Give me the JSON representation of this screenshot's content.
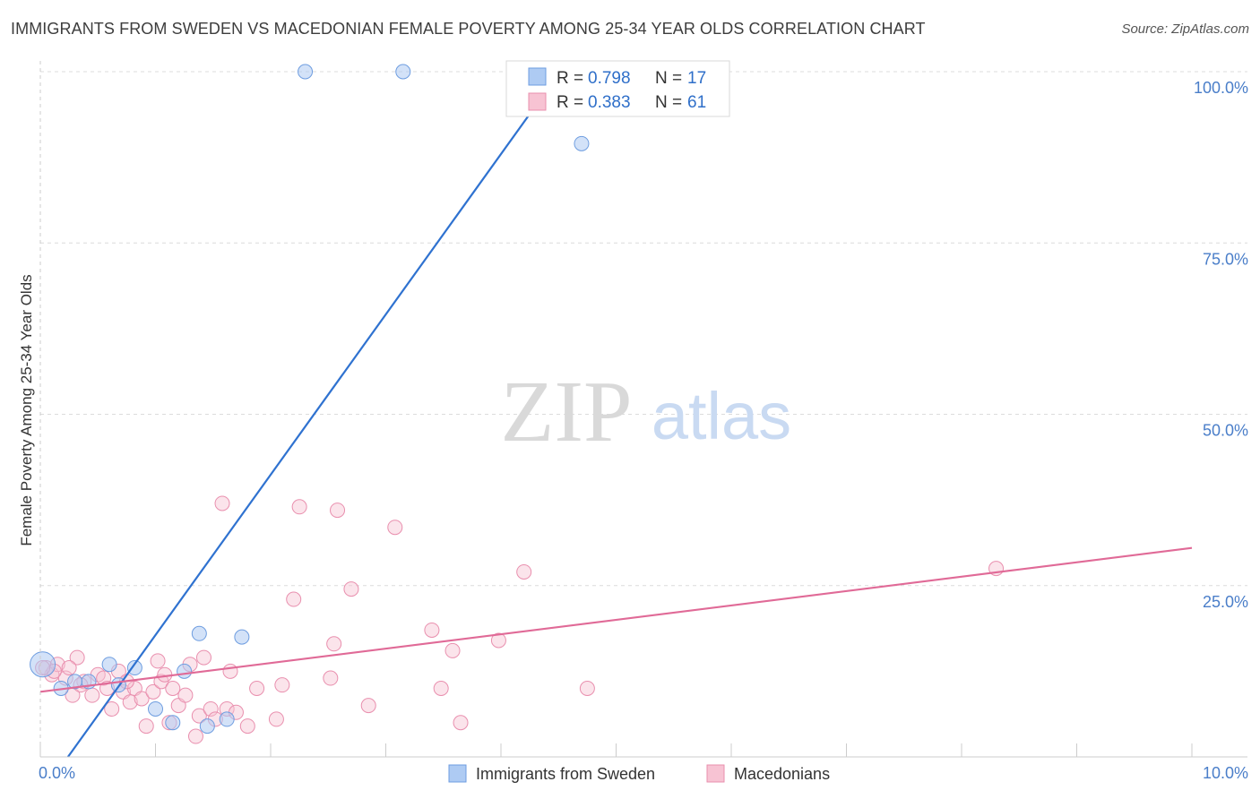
{
  "title": "IMMIGRANTS FROM SWEDEN VS MACEDONIAN FEMALE POVERTY AMONG 25-34 YEAR OLDS CORRELATION CHART",
  "source": "Source: ZipAtlas.com",
  "watermark": {
    "zip": "ZIP",
    "atlas": "atlas"
  },
  "colors": {
    "sweden_fill": "#aecbf3",
    "sweden_stroke": "#6e9de0",
    "sweden_line": "#2f72d0",
    "maced_fill": "#f7c3d3",
    "maced_stroke": "#e98fae",
    "maced_line": "#e06a97",
    "tick_text": "#4a7ec9"
  },
  "legend": {
    "r_label": "R =",
    "n_label": "N =",
    "rows": [
      {
        "r": "0.798",
        "n": "17"
      },
      {
        "r": "0.383",
        "n": "61"
      }
    ]
  },
  "chart_data": {
    "type": "scatter",
    "title": "IMMIGRANTS FROM SWEDEN VS MACEDONIAN FEMALE POVERTY AMONG 25-34 YEAR OLDS CORRELATION CHART",
    "xlabel": "",
    "ylabel": "Female Poverty Among 25-34 Year Olds",
    "xlim": [
      0,
      10
    ],
    "ylim": [
      0,
      100
    ],
    "x_tick_labels": [
      "0.0%",
      "10.0%"
    ],
    "y_tick_values": [
      25,
      50,
      75,
      100
    ],
    "y_tick_labels": [
      "25.0%",
      "50.0%",
      "75.0%",
      "100.0%"
    ],
    "grid": true,
    "legend_position": "top-center",
    "series": [
      {
        "name": "Immigrants from Sweden",
        "r": 0.798,
        "n": 17,
        "trend": {
          "x": [
            0.24,
            4.45
          ],
          "y": [
            0.0,
            98.5
          ]
        },
        "points": [
          {
            "x": 0.02,
            "y": 13.5
          },
          {
            "x": 0.18,
            "y": 10.0
          },
          {
            "x": 0.42,
            "y": 11.0
          },
          {
            "x": 0.6,
            "y": 13.5
          },
          {
            "x": 0.68,
            "y": 10.5
          },
          {
            "x": 0.82,
            "y": 13.0
          },
          {
            "x": 1.0,
            "y": 7.0
          },
          {
            "x": 1.15,
            "y": 5.0
          },
          {
            "x": 1.25,
            "y": 12.5
          },
          {
            "x": 1.38,
            "y": 18.0
          },
          {
            "x": 1.45,
            "y": 4.5
          },
          {
            "x": 1.62,
            "y": 5.5
          },
          {
            "x": 1.75,
            "y": 17.5
          },
          {
            "x": 2.3,
            "y": 100.0
          },
          {
            "x": 3.15,
            "y": 100.0
          },
          {
            "x": 4.7,
            "y": 89.5
          },
          {
            "x": 0.3,
            "y": 11.0
          }
        ]
      },
      {
        "name": "Macedonians",
        "r": 0.383,
        "n": 61,
        "trend": {
          "x": [
            0.0,
            10.0
          ],
          "y": [
            9.5,
            30.5
          ]
        },
        "points": [
          {
            "x": 0.05,
            "y": 13.0
          },
          {
            "x": 0.1,
            "y": 12.0
          },
          {
            "x": 0.15,
            "y": 13.5
          },
          {
            "x": 0.22,
            "y": 11.5
          },
          {
            "x": 0.28,
            "y": 9.0
          },
          {
            "x": 0.32,
            "y": 14.5
          },
          {
            "x": 0.38,
            "y": 11.0
          },
          {
            "x": 0.45,
            "y": 9.0
          },
          {
            "x": 0.5,
            "y": 12.0
          },
          {
            "x": 0.55,
            "y": 11.5
          },
          {
            "x": 0.62,
            "y": 7.0
          },
          {
            "x": 0.68,
            "y": 12.5
          },
          {
            "x": 0.72,
            "y": 9.5
          },
          {
            "x": 0.78,
            "y": 8.0
          },
          {
            "x": 0.82,
            "y": 10.0
          },
          {
            "x": 0.88,
            "y": 8.5
          },
          {
            "x": 0.92,
            "y": 4.5
          },
          {
            "x": 0.98,
            "y": 9.5
          },
          {
            "x": 1.02,
            "y": 14.0
          },
          {
            "x": 1.05,
            "y": 11.0
          },
          {
            "x": 1.12,
            "y": 5.0
          },
          {
            "x": 1.15,
            "y": 10.0
          },
          {
            "x": 1.2,
            "y": 7.5
          },
          {
            "x": 1.26,
            "y": 9.0
          },
          {
            "x": 1.3,
            "y": 13.5
          },
          {
            "x": 1.35,
            "y": 3.0
          },
          {
            "x": 1.38,
            "y": 6.0
          },
          {
            "x": 1.42,
            "y": 14.5
          },
          {
            "x": 1.48,
            "y": 7.0
          },
          {
            "x": 1.52,
            "y": 5.5
          },
          {
            "x": 1.58,
            "y": 37.0
          },
          {
            "x": 1.62,
            "y": 7.0
          },
          {
            "x": 1.65,
            "y": 12.5
          },
          {
            "x": 1.7,
            "y": 6.5
          },
          {
            "x": 1.8,
            "y": 4.5
          },
          {
            "x": 1.88,
            "y": 10.0
          },
          {
            "x": 2.05,
            "y": 5.5
          },
          {
            "x": 2.1,
            "y": 10.5
          },
          {
            "x": 2.2,
            "y": 23.0
          },
          {
            "x": 2.25,
            "y": 36.5
          },
          {
            "x": 2.55,
            "y": 16.5
          },
          {
            "x": 2.58,
            "y": 36.0
          },
          {
            "x": 2.7,
            "y": 24.5
          },
          {
            "x": 2.52,
            "y": 11.5
          },
          {
            "x": 2.85,
            "y": 7.5
          },
          {
            "x": 3.08,
            "y": 33.5
          },
          {
            "x": 3.4,
            "y": 18.5
          },
          {
            "x": 3.48,
            "y": 10.0
          },
          {
            "x": 3.58,
            "y": 15.5
          },
          {
            "x": 3.65,
            "y": 5.0
          },
          {
            "x": 3.98,
            "y": 17.0
          },
          {
            "x": 4.2,
            "y": 27.0
          },
          {
            "x": 4.75,
            "y": 10.0
          },
          {
            "x": 8.3,
            "y": 27.5
          },
          {
            "x": 0.12,
            "y": 12.5
          },
          {
            "x": 0.35,
            "y": 10.5
          },
          {
            "x": 0.58,
            "y": 10.0
          },
          {
            "x": 0.75,
            "y": 11.0
          },
          {
            "x": 1.08,
            "y": 12.0
          },
          {
            "x": 0.02,
            "y": 13.0
          },
          {
            "x": 0.25,
            "y": 13.0
          }
        ]
      }
    ]
  }
}
